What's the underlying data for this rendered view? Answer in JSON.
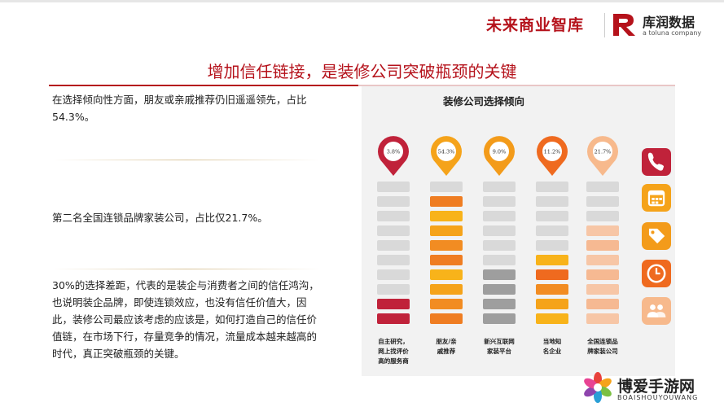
{
  "header": {
    "brand_left": "未来商业智库",
    "brand_right": "库润数据",
    "brand_right_sub": "a toluna company"
  },
  "title": "增加信任链接，是装修公司突破瓶颈的关键",
  "paragraphs": {
    "p1": "在选择倾向性方面，朋友或亲戚推荐仍旧遥遥领先，占比54.3%。",
    "p2": "第二名全国连锁品牌家装公司，占比仅21.7%。",
    "p3": "30%的选择差距，代表的是装企与消费者之间的信任鸿沟，也说明装企品牌，即使连锁效应，也没有信任价值大，因此，装修公司最应该考虑的应该是，如何打造自己的信任价值链，在市场下行，存量竞争的情况，流量成本越来越高的时代，真正突破瓶颈的关键。"
  },
  "chart_data": {
    "type": "bar",
    "title": "装修公司选择倾向",
    "categories": [
      "自主研究，网上找评价高的服务商",
      "朋友/亲戚推荐",
      "新兴互联网家装平台",
      "当地知名企业",
      "全国连锁品牌家装公司"
    ],
    "category_lines": [
      [
        "自主研究，",
        "网上找评价",
        "高的服务商"
      ],
      [
        "朋友/亲",
        "戚推荐"
      ],
      [
        "新兴互联网",
        "家装平台"
      ],
      [
        "当地知",
        "名企业"
      ],
      [
        "全国连锁品",
        "牌家装公司"
      ]
    ],
    "values": [
      3.8,
      54.3,
      9.0,
      11.2,
      21.7
    ],
    "value_labels": [
      "3.8%",
      "54.3%",
      "9.0%",
      "11.2%",
      "21.7%"
    ],
    "total_blocks": 10,
    "filled_blocks": [
      2,
      9,
      4,
      5,
      7
    ],
    "colors": {
      "pins": [
        "#c0223a",
        "#f5a31a",
        "#f39b1a",
        "#ef6a1f",
        "#f7b98c"
      ],
      "fills": [
        [
          "#c0223a"
        ],
        [
          "#ef7d22",
          "#f28c22",
          "#f5a31a",
          "#f8b31a"
        ],
        [
          "#9e9e9e"
        ],
        [
          "#f8b31a",
          "#f5a31a",
          "#f28c22",
          "#ef6a1f"
        ],
        [
          "#f7c6a6",
          "#f6b992"
        ]
      ],
      "empty": "#d9d9d9"
    }
  },
  "side_icons": [
    {
      "name": "phone-icon",
      "color": "#c0223a"
    },
    {
      "name": "calendar-icon",
      "color": "#f5a31a"
    },
    {
      "name": "tag-icon",
      "color": "#f39b1a"
    },
    {
      "name": "clock-icon",
      "color": "#ef6a1f"
    },
    {
      "name": "people-icon",
      "color": "#f7b98c"
    }
  ],
  "watermark": {
    "name": "博爱手游网",
    "sub": "BOAISHOUYOUWANG"
  }
}
